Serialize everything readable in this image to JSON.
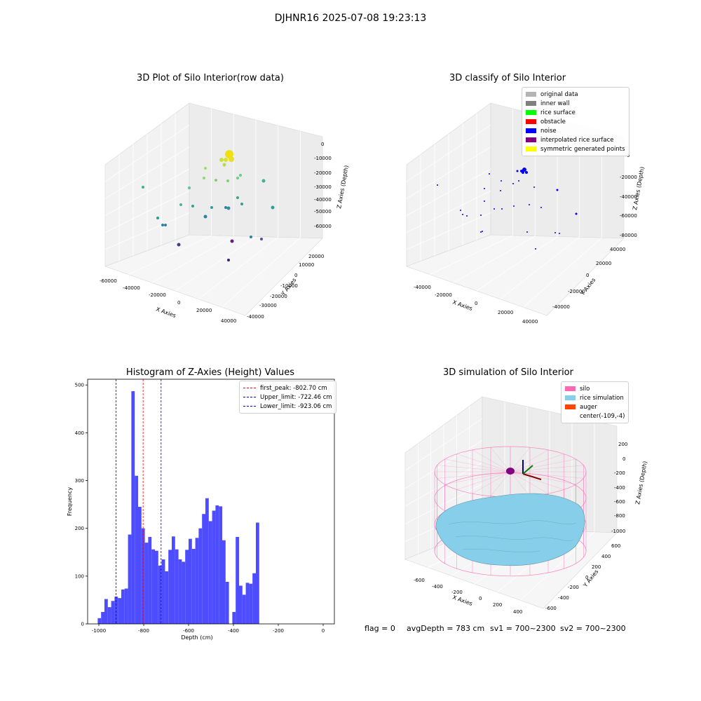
{
  "suptitle": "DJHNR16 2025-07-08 19:23:13",
  "footer": {
    "flag": "flag = 0",
    "avg": "avgDepth = 783 cm",
    "sv1": "sv1 = 700~2300",
    "sv2": "sv2 = 700~2300"
  },
  "chart_data": [
    {
      "type": "scatter",
      "title": "3D Plot of Silo Interior(row data)",
      "xlabel": "X Axies",
      "ylabel": "Y Axies",
      "zlabel": "Z Axies (Depth)",
      "x_ticks": [
        "-60000",
        "-40000",
        "-20000",
        "0",
        "20000",
        "40000"
      ],
      "y_ticks": [
        "20000",
        "10000",
        "0",
        "-10000",
        "-20000",
        "-30000",
        "-40000"
      ],
      "z_ticks": [
        "0",
        "-10000",
        "-20000",
        "-30000",
        "-40000",
        "-50000",
        "-60000"
      ],
      "colormap": "viridis"
    },
    {
      "type": "scatter",
      "title": "3D classify of Silo Interior",
      "xlabel": "X Axies",
      "ylabel": "Y Axies",
      "zlabel": "Z Axies (Depth)",
      "x_ticks": [
        "-40000",
        "-20000",
        "0",
        "20000",
        "40000"
      ],
      "y_ticks": [
        "40000",
        "20000",
        "0",
        "-20000",
        "-40000"
      ],
      "z_ticks": [
        "0",
        "-20000",
        "-40000",
        "-60000",
        "-80000"
      ],
      "legend_position": "top-right",
      "legend": [
        {
          "label": "original data",
          "color": "#b4b4b4"
        },
        {
          "label": "inner wall",
          "color": "#808080"
        },
        {
          "label": "rice surface",
          "color": "#00ff00"
        },
        {
          "label": "obstacle",
          "color": "#ff0000"
        },
        {
          "label": "noise",
          "color": "#0000ff"
        },
        {
          "label": "interpolated rice surface",
          "color": "#800080"
        },
        {
          "label": "symmetric generated points",
          "color": "#ffff00"
        }
      ]
    },
    {
      "type": "bar",
      "title": "Histogram of Z-Axies (Height) Values",
      "xlabel": "Depth (cm)",
      "ylabel": "Frequency",
      "bar_color": "#4d4dff",
      "xlim": [
        -1050,
        50
      ],
      "ylim": [
        0,
        512
      ],
      "x_ticks": [
        -1000,
        -800,
        -600,
        -400,
        -200,
        0
      ],
      "y_ticks": [
        0,
        100,
        200,
        300,
        400,
        500
      ],
      "bin_start": -1005,
      "bin_width": 15,
      "values": [
        12,
        25,
        52,
        35,
        48,
        57,
        54,
        72,
        74,
        187,
        487,
        310,
        245,
        200,
        170,
        182,
        156,
        153,
        122,
        135,
        110,
        155,
        183,
        156,
        135,
        130,
        155,
        178,
        157,
        180,
        200,
        230,
        263,
        215,
        237,
        248,
        246,
        175,
        88,
        0,
        25,
        182,
        80,
        61,
        86,
        84,
        106,
        212
      ],
      "legend_position": "top-right",
      "lines": [
        {
          "label": "first_peak: -802.70 cm",
          "x": -802.7,
          "color": "#ff0000"
        },
        {
          "label": "Upper_limit: -722.46 cm",
          "x": -722.46,
          "color": "#0000cc"
        },
        {
          "label": "Lower_limit: -923.06 cm",
          "x": -923.06,
          "color": "#0000cc"
        }
      ]
    },
    {
      "type": "surface",
      "title": "3D simulation of Silo Interior",
      "xlabel": "X Axies",
      "ylabel": "Y Axies",
      "zlabel": "Z Axies (Depth)",
      "x_ticks": [
        "-600",
        "-400",
        "-200",
        "0",
        "200",
        "400"
      ],
      "y_ticks": [
        "600",
        "400",
        "200",
        "0",
        "-200",
        "-400",
        "-600"
      ],
      "z_ticks": [
        "200",
        "0",
        "-200",
        "-400",
        "-600",
        "-800",
        "-1000"
      ],
      "legend_position": "top-right",
      "legend": [
        {
          "label": "silo",
          "color": "#ff69b4"
        },
        {
          "label": "rice simulation",
          "color": "#87ceeb"
        },
        {
          "label": "auger",
          "color": "#ff4500"
        },
        {
          "label": "center(-109,-4)",
          "color": ""
        }
      ]
    }
  ]
}
